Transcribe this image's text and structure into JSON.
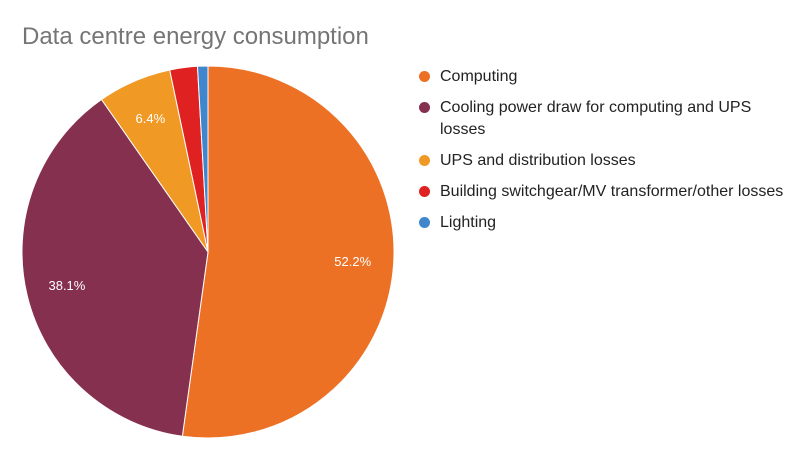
{
  "chart_data": {
    "type": "pie",
    "title": "Data centre energy consumption",
    "slices": [
      {
        "label": "Computing",
        "value": 52.2,
        "display": "52.2%",
        "color": "#ec7125"
      },
      {
        "label": "Cooling power draw for computing and UPS losses",
        "value": 38.1,
        "display": "38.1%",
        "color": "#86304f"
      },
      {
        "label": "UPS and distribution losses",
        "value": 6.4,
        "display": "6.4%",
        "color": "#f09a25"
      },
      {
        "label": "Building switchgear/MV transformer/other losses",
        "value": 2.4,
        "display": "",
        "color": "#df2121"
      },
      {
        "label": "Lighting",
        "value": 0.9,
        "display": "",
        "color": "#3f86cc"
      }
    ],
    "legend_position": "right"
  }
}
